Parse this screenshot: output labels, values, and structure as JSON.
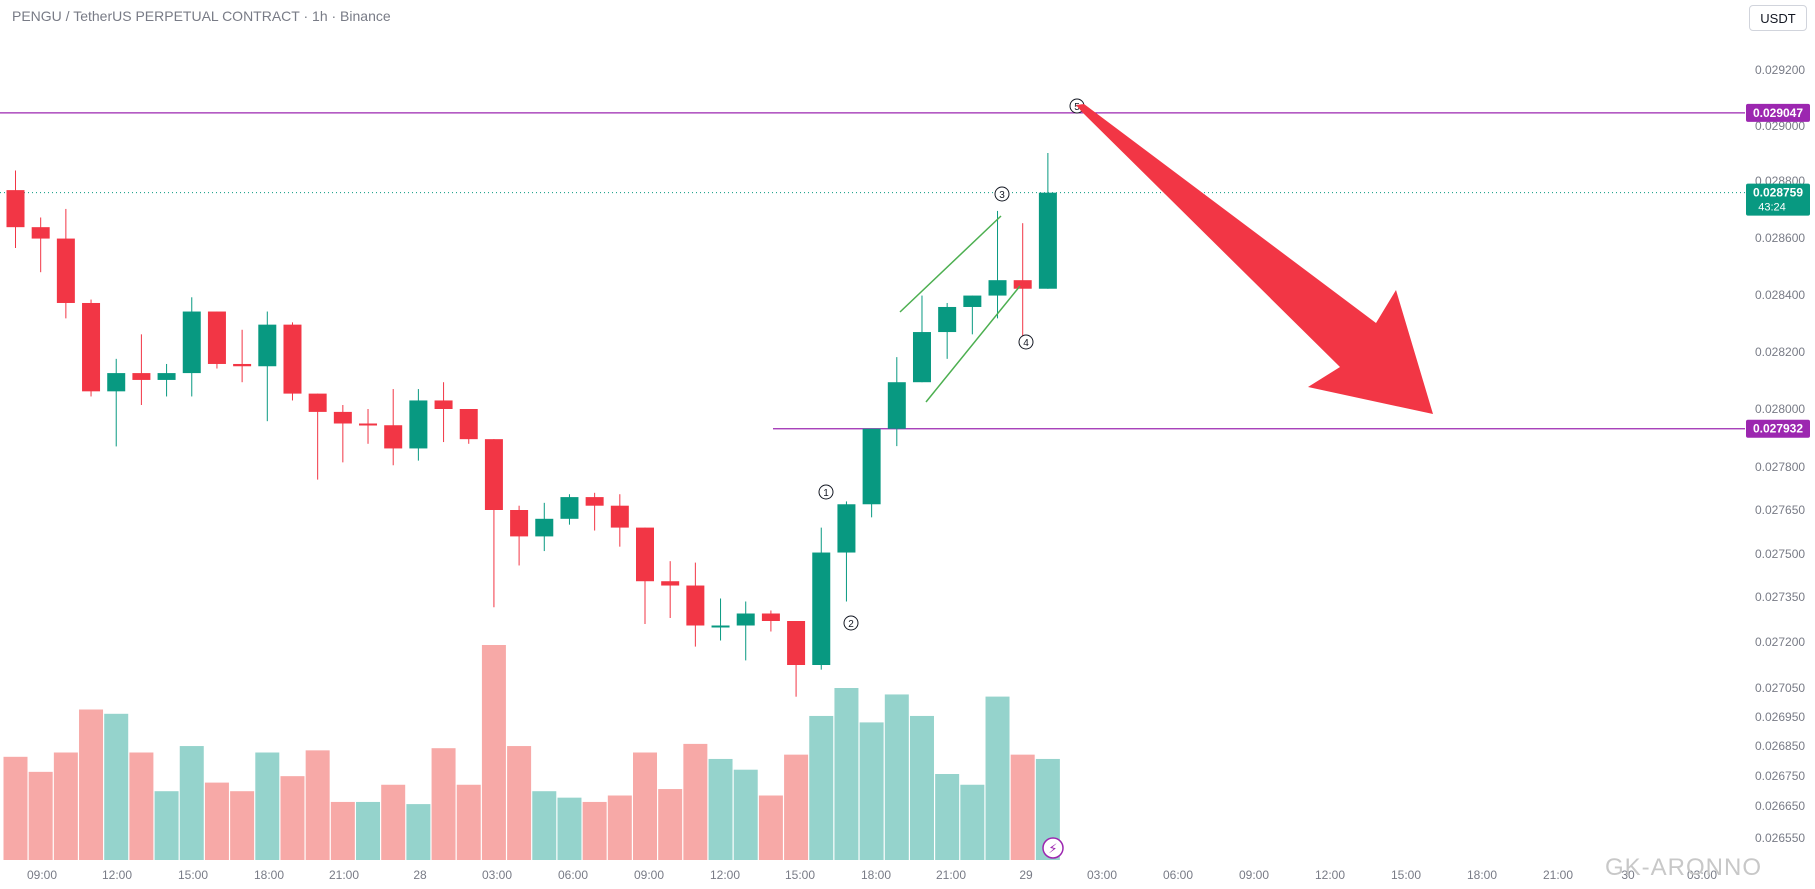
{
  "header": {
    "title": "PENGU / TetherUS PERPETUAL CONTRACT · 1h · Binance",
    "currency_button": "USDT"
  },
  "watermark": "GK-ARONNO",
  "colors": {
    "up": "#089981",
    "down": "#f23645",
    "vol_up": "#95d3cc",
    "vol_down": "#f7a9a7",
    "level_line": "#9c27b0",
    "arrow": "#f23645",
    "channel": "#4caf50",
    "last_price_bg": "#089981",
    "level_label_bg": "#9c27b0"
  },
  "chart_data": {
    "type": "candlestick",
    "symbol": "PENGU / TetherUS PERPETUAL CONTRACT",
    "interval": "1h",
    "exchange": "Binance",
    "y_ticks": [
      "0.029200",
      "0.029000",
      "0.028800",
      "0.028600",
      "0.028400",
      "0.028200",
      "0.028000",
      "0.027800",
      "0.027650",
      "0.027500",
      "0.027350",
      "0.027200",
      "0.027050",
      "0.026950",
      "0.026850",
      "0.026750",
      "0.026650",
      "0.026550"
    ],
    "x_ticks": [
      "09:00",
      "12:00",
      "15:00",
      "18:00",
      "21:00",
      "28",
      "03:00",
      "06:00",
      "09:00",
      "12:00",
      "15:00",
      "18:00",
      "21:00",
      "29",
      "03:00",
      "06:00",
      "09:00",
      "12:00",
      "15:00",
      "18:00",
      "21:00",
      "30",
      "03:00"
    ],
    "candles": [
      {
        "o": 0.028768,
        "h": 0.028838,
        "l": 0.028565,
        "c": 0.028638
      },
      {
        "o": 0.028638,
        "h": 0.028672,
        "l": 0.02848,
        "c": 0.028598
      },
      {
        "o": 0.028598,
        "h": 0.028702,
        "l": 0.028318,
        "c": 0.028372
      },
      {
        "o": 0.028372,
        "h": 0.028384,
        "l": 0.028044,
        "c": 0.028062
      },
      {
        "o": 0.028062,
        "h": 0.028176,
        "l": 0.027871,
        "c": 0.028126
      },
      {
        "o": 0.028126,
        "h": 0.028262,
        "l": 0.028014,
        "c": 0.028102
      },
      {
        "o": 0.028102,
        "h": 0.028158,
        "l": 0.028044,
        "c": 0.028126
      },
      {
        "o": 0.028126,
        "h": 0.028392,
        "l": 0.028044,
        "c": 0.028342
      },
      {
        "o": 0.028342,
        "h": 0.028342,
        "l": 0.028142,
        "c": 0.028158
      },
      {
        "o": 0.028158,
        "h": 0.028278,
        "l": 0.028094,
        "c": 0.02815
      },
      {
        "o": 0.02815,
        "h": 0.028342,
        "l": 0.027958,
        "c": 0.028296
      },
      {
        "o": 0.028296,
        "h": 0.028304,
        "l": 0.02803,
        "c": 0.028054
      },
      {
        "o": 0.028054,
        "h": 0.028054,
        "l": 0.027756,
        "c": 0.02799
      },
      {
        "o": 0.02799,
        "h": 0.028014,
        "l": 0.027816,
        "c": 0.02795
      },
      {
        "o": 0.02795,
        "h": 0.028,
        "l": 0.02788,
        "c": 0.027944
      },
      {
        "o": 0.027944,
        "h": 0.02807,
        "l": 0.027806,
        "c": 0.027864
      },
      {
        "o": 0.027864,
        "h": 0.02807,
        "l": 0.027822,
        "c": 0.02803
      },
      {
        "o": 0.02803,
        "h": 0.028094,
        "l": 0.027886,
        "c": 0.028
      },
      {
        "o": 0.028,
        "h": 0.028,
        "l": 0.02788,
        "c": 0.027896
      },
      {
        "o": 0.027896,
        "h": 0.027896,
        "l": 0.027316,
        "c": 0.02765
      },
      {
        "o": 0.02765,
        "h": 0.027665,
        "l": 0.02746,
        "c": 0.02756
      },
      {
        "o": 0.02756,
        "h": 0.027675,
        "l": 0.02751,
        "c": 0.02762
      },
      {
        "o": 0.02762,
        "h": 0.027705,
        "l": 0.0276,
        "c": 0.027695
      },
      {
        "o": 0.027695,
        "h": 0.02771,
        "l": 0.02758,
        "c": 0.027665
      },
      {
        "o": 0.027665,
        "h": 0.027705,
        "l": 0.027525,
        "c": 0.02759
      },
      {
        "o": 0.02759,
        "h": 0.02759,
        "l": 0.02726,
        "c": 0.027405
      },
      {
        "o": 0.027405,
        "h": 0.027475,
        "l": 0.02728,
        "c": 0.02739
      },
      {
        "o": 0.02739,
        "h": 0.02747,
        "l": 0.027185,
        "c": 0.027255
      },
      {
        "o": 0.027255,
        "h": 0.027345,
        "l": 0.027205,
        "c": 0.027255
      },
      {
        "o": 0.027255,
        "h": 0.027335,
        "l": 0.02714,
        "c": 0.027295
      },
      {
        "o": 0.027295,
        "h": 0.027305,
        "l": 0.027235,
        "c": 0.02727
      },
      {
        "o": 0.02727,
        "h": 0.02727,
        "l": 0.02702,
        "c": 0.027125
      },
      {
        "o": 0.027125,
        "h": 0.02759,
        "l": 0.02711,
        "c": 0.027505
      },
      {
        "o": 0.027505,
        "h": 0.02768,
        "l": 0.027335,
        "c": 0.02767
      },
      {
        "o": 0.02767,
        "h": 0.027932,
        "l": 0.027625,
        "c": 0.027932
      },
      {
        "o": 0.027932,
        "h": 0.028182,
        "l": 0.027872,
        "c": 0.028094
      },
      {
        "o": 0.028094,
        "h": 0.028398,
        "l": 0.028094,
        "c": 0.02827
      },
      {
        "o": 0.02827,
        "h": 0.028372,
        "l": 0.028176,
        "c": 0.028358
      },
      {
        "o": 0.028358,
        "h": 0.028398,
        "l": 0.028262,
        "c": 0.028398
      },
      {
        "o": 0.028398,
        "h": 0.028695,
        "l": 0.028318,
        "c": 0.028452
      },
      {
        "o": 0.028452,
        "h": 0.028652,
        "l": 0.028236,
        "c": 0.028422
      },
      {
        "o": 0.028422,
        "h": 0.028902,
        "l": 0.028422,
        "c": 0.028759
      }
    ],
    "volume": [
      {
        "v": 0.48,
        "dir": "down"
      },
      {
        "v": 0.41,
        "dir": "down"
      },
      {
        "v": 0.5,
        "dir": "down"
      },
      {
        "v": 0.7,
        "dir": "down"
      },
      {
        "v": 0.68,
        "dir": "up"
      },
      {
        "v": 0.5,
        "dir": "down"
      },
      {
        "v": 0.32,
        "dir": "up"
      },
      {
        "v": 0.53,
        "dir": "up"
      },
      {
        "v": 0.36,
        "dir": "down"
      },
      {
        "v": 0.32,
        "dir": "down"
      },
      {
        "v": 0.5,
        "dir": "up"
      },
      {
        "v": 0.39,
        "dir": "down"
      },
      {
        "v": 0.51,
        "dir": "down"
      },
      {
        "v": 0.27,
        "dir": "down"
      },
      {
        "v": 0.27,
        "dir": "up"
      },
      {
        "v": 0.35,
        "dir": "down"
      },
      {
        "v": 0.26,
        "dir": "up"
      },
      {
        "v": 0.52,
        "dir": "down"
      },
      {
        "v": 0.35,
        "dir": "down"
      },
      {
        "v": 1.0,
        "dir": "down"
      },
      {
        "v": 0.53,
        "dir": "down"
      },
      {
        "v": 0.32,
        "dir": "up"
      },
      {
        "v": 0.29,
        "dir": "up"
      },
      {
        "v": 0.27,
        "dir": "down"
      },
      {
        "v": 0.3,
        "dir": "down"
      },
      {
        "v": 0.5,
        "dir": "down"
      },
      {
        "v": 0.33,
        "dir": "down"
      },
      {
        "v": 0.54,
        "dir": "down"
      },
      {
        "v": 0.47,
        "dir": "up"
      },
      {
        "v": 0.42,
        "dir": "up"
      },
      {
        "v": 0.3,
        "dir": "down"
      },
      {
        "v": 0.49,
        "dir": "down"
      },
      {
        "v": 0.67,
        "dir": "up"
      },
      {
        "v": 0.8,
        "dir": "up"
      },
      {
        "v": 0.64,
        "dir": "up"
      },
      {
        "v": 0.77,
        "dir": "up"
      },
      {
        "v": 0.67,
        "dir": "up"
      },
      {
        "v": 0.4,
        "dir": "up"
      },
      {
        "v": 0.35,
        "dir": "up"
      },
      {
        "v": 0.76,
        "dir": "up"
      },
      {
        "v": 0.49,
        "dir": "down"
      },
      {
        "v": 0.47,
        "dir": "up"
      }
    ],
    "levels": [
      {
        "price": 0.029047,
        "label": "0.029047"
      },
      {
        "price": 0.027932,
        "label": "0.027932"
      }
    ],
    "last_price": {
      "price": 0.028759,
      "label": "0.028759",
      "countdown": "43:24"
    },
    "wave_labels": [
      "1",
      "2",
      "3",
      "4",
      "5"
    ],
    "annotations": [
      "rising-wedge-channel",
      "bearish-arrow"
    ]
  }
}
